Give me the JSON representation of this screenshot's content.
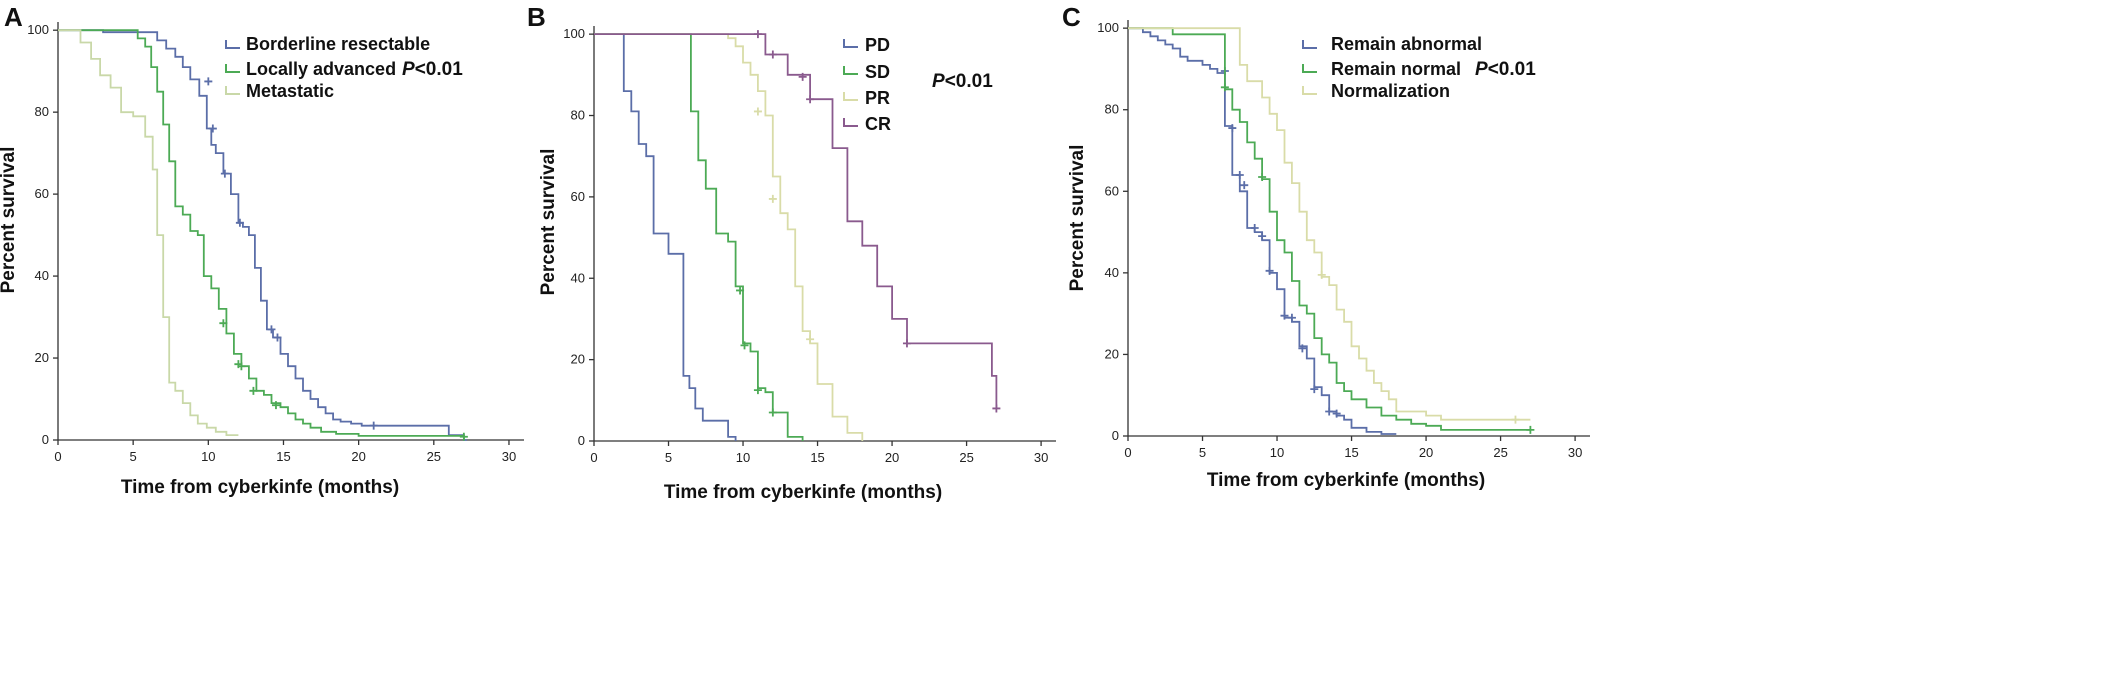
{
  "chart_data": [
    {
      "type": "line",
      "subtype": "kaplan-meier",
      "panel": "A",
      "xlabel": "Time from cyberkinfe (months)",
      "ylabel": "Percent survival",
      "xlim": [
        0,
        31
      ],
      "ylim": [
        0,
        102
      ],
      "xticks": [
        0,
        5,
        10,
        15,
        20,
        25,
        30
      ],
      "yticks": [
        0,
        20,
        40,
        60,
        80,
        100
      ],
      "grid": false,
      "legend_position": "top-right",
      "annotation": {
        "italic": "P",
        "rest": "<0.01"
      },
      "series": [
        {
          "name": "Borderline resectable",
          "color": "#5b6ea8",
          "x": [
            0,
            3,
            6.6,
            7.2,
            7.8,
            8.3,
            8.8,
            9.4,
            9.9,
            10.2,
            10.5,
            11,
            11.5,
            12,
            12.3,
            12.7,
            13.1,
            13.5,
            13.9,
            14.3,
            14.8,
            15.3,
            15.8,
            16.3,
            16.8,
            17.3,
            17.8,
            18.3,
            18.8,
            19.5,
            20.2,
            21,
            26,
            27,
            27.2
          ],
          "y": [
            100,
            99.5,
            97.5,
            95.5,
            93.5,
            91,
            88,
            84,
            76,
            72,
            70,
            65,
            60,
            53,
            52,
            50,
            42,
            34,
            27,
            25,
            21,
            18,
            15,
            12,
            10,
            8,
            6.5,
            5,
            4.5,
            4,
            3.5,
            3.5,
            1.2,
            0,
            0
          ],
          "censored": [
            [
              10,
              87.5
            ],
            [
              10.3,
              76
            ],
            [
              11.1,
              65
            ],
            [
              12.1,
              53
            ],
            [
              14.2,
              27
            ],
            [
              14.6,
              25
            ],
            [
              21,
              3.5
            ]
          ]
        },
        {
          "name": "Locally advanced",
          "color": "#4caa55",
          "x": [
            0,
            5.3,
            5.8,
            6.2,
            6.6,
            7.0,
            7.4,
            7.8,
            8.3,
            8.8,
            9.3,
            9.7,
            10.2,
            10.7,
            11.2,
            11.7,
            12.2,
            12.7,
            13.2,
            13.7,
            14.2,
            14.8,
            15.3,
            15.8,
            16.3,
            16.8,
            17.5,
            18.5,
            20,
            27
          ],
          "y": [
            100,
            98,
            96,
            91,
            85,
            77,
            68,
            57,
            55,
            51,
            50,
            40,
            37,
            32,
            26,
            21,
            18,
            15,
            12,
            11,
            9,
            8,
            6.5,
            5,
            4,
            3,
            2,
            1.5,
            1,
            0
          ],
          "censored": [
            [
              11,
              28.5
            ],
            [
              12,
              18.5
            ],
            [
              12.2,
              18
            ],
            [
              13,
              12
            ],
            [
              14.5,
              8.5
            ],
            [
              27,
              0.8
            ]
          ]
        },
        {
          "name": "Metastatic",
          "color": "#c9d8a8",
          "x": [
            0,
            1.5,
            2.2,
            2.8,
            3.5,
            4.2,
            5,
            5.8,
            6.3,
            6.6,
            7.0,
            7.4,
            7.8,
            8.3,
            8.8,
            9.3,
            9.9,
            10.5,
            11.2,
            12
          ],
          "y": [
            100,
            97,
            93,
            89,
            86,
            80,
            79,
            74,
            66,
            50,
            30,
            14,
            12,
            9,
            6,
            4,
            3,
            2,
            1.2,
            1.2
          ],
          "censored": []
        }
      ]
    },
    {
      "type": "line",
      "subtype": "kaplan-meier",
      "panel": "B",
      "xlabel": "Time from cyberkinfe (months)",
      "ylabel": "Percent survival",
      "xlim": [
        0,
        31
      ],
      "ylim": [
        0,
        102
      ],
      "xticks": [
        0,
        5,
        10,
        15,
        20,
        25,
        30
      ],
      "yticks": [
        0,
        20,
        40,
        60,
        80,
        100
      ],
      "grid": false,
      "legend_position": "top-right",
      "annotation": {
        "italic": "P",
        "rest": "<0.01"
      },
      "series": [
        {
          "name": "PD",
          "color": "#5b6ea8",
          "x": [
            0,
            2,
            2.5,
            3,
            3.5,
            4,
            5,
            6,
            6.4,
            6.8,
            7.3,
            8,
            9,
            9.5
          ],
          "y": [
            100,
            86,
            81,
            73,
            70,
            51,
            46,
            16,
            13,
            8,
            5,
            5,
            1,
            0
          ],
          "censored": []
        },
        {
          "name": "SD",
          "color": "#4caa55",
          "x": [
            0,
            6.5,
            7,
            7.5,
            8.2,
            9,
            9.5,
            10,
            10.5,
            11,
            11.5,
            12,
            12.5,
            13,
            14
          ],
          "y": [
            100,
            81,
            69,
            62,
            51,
            49,
            38,
            24,
            22,
            13,
            12,
            7,
            7,
            1,
            0
          ],
          "censored": [
            [
              9.8,
              37
            ],
            [
              10.1,
              23.5
            ],
            [
              11,
              12.5
            ],
            [
              12,
              7
            ]
          ]
        },
        {
          "name": "PR",
          "color": "#d9dca8",
          "x": [
            0,
            9,
            9.5,
            10,
            10.5,
            11,
            11.5,
            12,
            12.5,
            13,
            13.5,
            14,
            14.5,
            15,
            16,
            17,
            18
          ],
          "y": [
            100,
            99,
            97,
            93,
            90,
            86,
            80,
            65,
            56,
            52,
            38,
            27,
            24,
            14,
            6,
            2,
            0
          ],
          "censored": [
            [
              11,
              81
            ],
            [
              12,
              59.5
            ],
            [
              14.5,
              25
            ]
          ]
        },
        {
          "name": "CR",
          "color": "#8a5a8e",
          "x": [
            0,
            11,
            11.5,
            13,
            14.5,
            16,
            17,
            18,
            19,
            20,
            21,
            26,
            26.7,
            27
          ],
          "y": [
            100,
            100,
            95,
            90,
            84,
            72,
            54,
            48,
            38,
            30,
            24,
            24,
            16,
            8
          ],
          "censored": [
            [
              11,
              100
            ],
            [
              12,
              95
            ],
            [
              14,
              89.5
            ],
            [
              14.5,
              84
            ],
            [
              21,
              24
            ],
            [
              27,
              8
            ]
          ]
        }
      ]
    },
    {
      "type": "line",
      "subtype": "kaplan-meier",
      "panel": "C",
      "xlabel": "Time from cyberkinfe (months)",
      "ylabel": "Percent survival",
      "xlim": [
        0,
        31
      ],
      "ylim": [
        0,
        102
      ],
      "xticks": [
        0,
        5,
        10,
        15,
        20,
        25,
        30
      ],
      "yticks": [
        0,
        20,
        40,
        60,
        80,
        100
      ],
      "grid": false,
      "legend_position": "top-right",
      "annotation": {
        "italic": "P",
        "rest": "<0.01"
      },
      "series": [
        {
          "name": "Remain abnormal",
          "color": "#5b6ea8",
          "x": [
            0,
            1,
            1.5,
            2,
            2.5,
            3,
            3.5,
            4,
            4.5,
            5,
            5.5,
            6,
            6.5,
            7,
            7.5,
            8,
            8.5,
            9,
            9.5,
            10,
            10.5,
            11,
            11.5,
            12,
            12.5,
            13,
            13.5,
            14,
            14.5,
            15,
            16,
            17,
            18
          ],
          "y": [
            100,
            99,
            98,
            97,
            96,
            95,
            93,
            92,
            92,
            91,
            90,
            89,
            76,
            64,
            60,
            51,
            50,
            48,
            40,
            36,
            29,
            28,
            22,
            19,
            12,
            10,
            6,
            5,
            4,
            2,
            1,
            0.5,
            0.5
          ],
          "censored": [
            [
              6.5,
              89.5
            ],
            [
              7,
              75.5
            ],
            [
              7.5,
              64
            ],
            [
              7.8,
              61.5
            ],
            [
              8.5,
              51
            ],
            [
              9,
              49
            ],
            [
              9.5,
              40.5
            ],
            [
              10.5,
              29.5
            ],
            [
              11,
              29
            ],
            [
              11.7,
              21.5
            ],
            [
              12.5,
              11.5
            ],
            [
              13.5,
              6
            ],
            [
              14,
              5.5
            ]
          ]
        },
        {
          "name": "Remain normal",
          "color": "#4caa55",
          "x": [
            0,
            3,
            6,
            6.5,
            7,
            7.5,
            8,
            8.5,
            9,
            9.5,
            10,
            10.5,
            11,
            11.5,
            12,
            12.5,
            13,
            13.5,
            14,
            14.5,
            15,
            16,
            17,
            18,
            19,
            20,
            21,
            27
          ],
          "y": [
            100,
            98.5,
            98.5,
            85,
            80,
            77,
            72,
            68,
            63,
            55,
            48,
            45,
            38,
            32,
            30,
            24,
            20,
            18,
            13,
            11,
            9,
            7,
            5,
            4,
            3,
            2.5,
            1.5,
            1.5
          ],
          "censored": [
            [
              6.5,
              85.5
            ],
            [
              9,
              63.5
            ],
            [
              27,
              1.5
            ]
          ]
        },
        {
          "name": "Normalization",
          "color": "#d9dca8",
          "x": [
            0,
            7,
            7.5,
            8,
            9,
            9.5,
            10,
            10.5,
            11,
            11.5,
            12,
            12.5,
            13,
            13.5,
            14,
            14.5,
            15,
            15.5,
            16,
            16.5,
            17,
            17.5,
            18,
            19,
            20,
            21,
            27
          ],
          "y": [
            100,
            100,
            91,
            87,
            83,
            79,
            75,
            67,
            62,
            55,
            48,
            45,
            39,
            37,
            31,
            28,
            22,
            19,
            16,
            13,
            11,
            9,
            6,
            6,
            5,
            4,
            4
          ],
          "censored": [
            [
              13,
              39.5
            ],
            [
              26,
              4
            ]
          ]
        }
      ]
    }
  ]
}
